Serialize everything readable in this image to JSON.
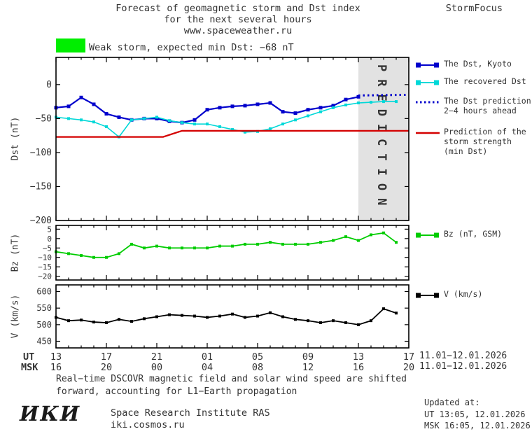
{
  "header": {
    "title_line1": "Forecast of geomagnetic storm and Dst index",
    "title_line2": "for the next several hours",
    "title_line3": "www.spaceweather.ru",
    "brand": "StormFocus"
  },
  "storm_banner": {
    "color": "#00ee00",
    "text": "Weak storm, expected min Dst: −68 nT"
  },
  "legend": [
    {
      "label_lines": [
        "The Dst, Kyoto"
      ],
      "color": "#0000cc",
      "style": "square-line"
    },
    {
      "label_lines": [
        "The recovered Dst"
      ],
      "color": "#00d8d8",
      "style": "square-line"
    },
    {
      "label_lines": [
        "The Dst prediction",
        "2−4 hours ahead"
      ],
      "color": "#0000cc",
      "style": "dotted"
    },
    {
      "label_lines": [
        "Prediction of the",
        "storm strength",
        "(min Dst)"
      ],
      "color": "#d40000",
      "style": "line"
    },
    {
      "label_lines": [
        "Bz (nT, GSM)"
      ],
      "color": "#00cc00",
      "style": "square-line"
    },
    {
      "label_lines": [
        "V (km/s)"
      ],
      "color": "#000000",
      "style": "square-line"
    }
  ],
  "xaxis": {
    "ut_label": "UT",
    "msk_label": "MSK",
    "tick_hours": [
      13,
      17,
      21,
      25,
      29,
      33,
      37,
      41
    ],
    "ut_ticks": [
      "13",
      "17",
      "21",
      "01",
      "05",
      "09",
      "13",
      "17"
    ],
    "msk_ticks": [
      "16",
      "20",
      "00",
      "04",
      "08",
      "12",
      "16",
      "20"
    ],
    "date_range_ut": "11.01−12.01.2026",
    "date_range_msk": "11.01−12.01.2026"
  },
  "footnote": {
    "line1": "Real−time DSCOVR magnetic field and solar wind speed are shifted",
    "line2": "forward, accounting for L1−Earth propagation"
  },
  "footer": {
    "logo": "ИКИ",
    "institute": "Space Research Institute RAS",
    "site": "iki.cosmos.ru",
    "updated_label": "Updated at:",
    "updated_ut": "UT  13:05, 12.01.2026",
    "updated_msk": "MSK 16:05, 12.01.2026"
  },
  "chart_data": [
    {
      "type": "line",
      "title": "Dst forecast",
      "ylabel": "Dst (nT)",
      "ylim": [
        -200,
        40
      ],
      "xlim_hours": [
        13,
        41
      ],
      "ytick_values": [
        0,
        -50,
        -100,
        -150,
        -200
      ],
      "ytick_labels": [
        "0",
        "−50",
        "−100",
        "−150",
        "−200"
      ],
      "prediction_band": {
        "x_start": 37,
        "x_end": 41,
        "label": "PREDICTION"
      },
      "series": [
        {
          "name": "The Dst, Kyoto",
          "color": "#0000cc",
          "width": 2.2,
          "marker": "square",
          "marker_size": 5,
          "x": [
            13,
            14,
            15,
            16,
            17,
            18,
            19,
            20,
            21,
            22,
            23,
            24,
            25,
            26,
            27,
            28,
            29,
            30,
            31,
            32,
            33,
            34,
            35,
            36,
            37
          ],
          "y": [
            -34,
            -32,
            -19,
            -29,
            -43,
            -48,
            -52,
            -50,
            -50,
            -54,
            -56,
            -52,
            -37,
            -34,
            -32,
            -31,
            -29,
            -27,
            -40,
            -42,
            -37,
            -34,
            -31,
            -22,
            -18
          ]
        },
        {
          "name": "The recovered Dst",
          "color": "#00d8d8",
          "width": 1.6,
          "marker": "square",
          "marker_size": 4,
          "x": [
            13,
            14,
            15,
            16,
            17,
            18,
            19,
            20,
            21,
            22,
            23,
            24,
            25,
            26,
            27,
            28,
            29,
            30,
            31,
            32,
            33,
            34,
            35,
            36,
            37,
            38,
            39,
            40
          ],
          "y": [
            -48,
            -50,
            -52,
            -55,
            -62,
            -77,
            -52,
            -50,
            -48,
            -53,
            -56,
            -58,
            -58,
            -62,
            -66,
            -70,
            -69,
            -65,
            -58,
            -52,
            -46,
            -40,
            -34,
            -30,
            -27,
            -26,
            -25,
            -25
          ]
        },
        {
          "name": "The Dst prediction 2−4 hours ahead",
          "color": "#0000cc",
          "width": 3,
          "style": "dotted",
          "marker": "none",
          "x": [
            37,
            41
          ],
          "y": [
            -16,
            -15
          ]
        },
        {
          "name": "Prediction of the storm strength (min Dst)",
          "color": "#d40000",
          "width": 2.2,
          "marker": "none",
          "x": [
            13,
            21.5,
            23,
            41
          ],
          "y": [
            -77,
            -77,
            -68,
            -68
          ]
        }
      ]
    },
    {
      "type": "line",
      "ylabel": "Bz (nT)",
      "ylim": [
        -22,
        7
      ],
      "xlim_hours": [
        13,
        41
      ],
      "ytick_values": [
        5,
        0,
        -5,
        -10,
        -15,
        -20
      ],
      "ytick_labels": [
        "5",
        "0",
        "−5",
        "−10",
        "−15",
        "−20"
      ],
      "series": [
        {
          "name": "Bz (nT, GSM)",
          "color": "#00cc00",
          "width": 1.8,
          "marker": "square",
          "marker_size": 4,
          "x": [
            13,
            14,
            15,
            16,
            17,
            18,
            19,
            20,
            21,
            22,
            23,
            24,
            25,
            26,
            27,
            28,
            29,
            30,
            31,
            32,
            33,
            34,
            35,
            36,
            37,
            38,
            39,
            40
          ],
          "y": [
            -7,
            -8,
            -9,
            -10,
            -10,
            -8,
            -3,
            -5,
            -4,
            -5,
            -5,
            -5,
            -5,
            -4,
            -4,
            -3,
            -3,
            -2,
            -3,
            -3,
            -3,
            -2,
            -1,
            1,
            -1,
            2,
            3,
            -2
          ]
        }
      ]
    },
    {
      "type": "line",
      "ylabel": "V (km/s)",
      "ylim": [
        430,
        620
      ],
      "xlim_hours": [
        13,
        41
      ],
      "ytick_values": [
        600,
        550,
        500,
        450
      ],
      "ytick_labels": [
        "600",
        "550",
        "500",
        "450"
      ],
      "series": [
        {
          "name": "V (km/s)",
          "color": "#000000",
          "width": 1.8,
          "marker": "square",
          "marker_size": 4,
          "x": [
            13,
            14,
            15,
            16,
            17,
            18,
            19,
            20,
            21,
            22,
            23,
            24,
            25,
            26,
            27,
            28,
            29,
            30,
            31,
            32,
            33,
            34,
            35,
            36,
            37,
            38,
            39,
            40
          ],
          "y": [
            522,
            512,
            514,
            508,
            506,
            516,
            510,
            518,
            524,
            530,
            528,
            526,
            522,
            526,
            532,
            522,
            526,
            536,
            524,
            516,
            512,
            506,
            512,
            506,
            500,
            512,
            548,
            535
          ]
        }
      ]
    }
  ]
}
